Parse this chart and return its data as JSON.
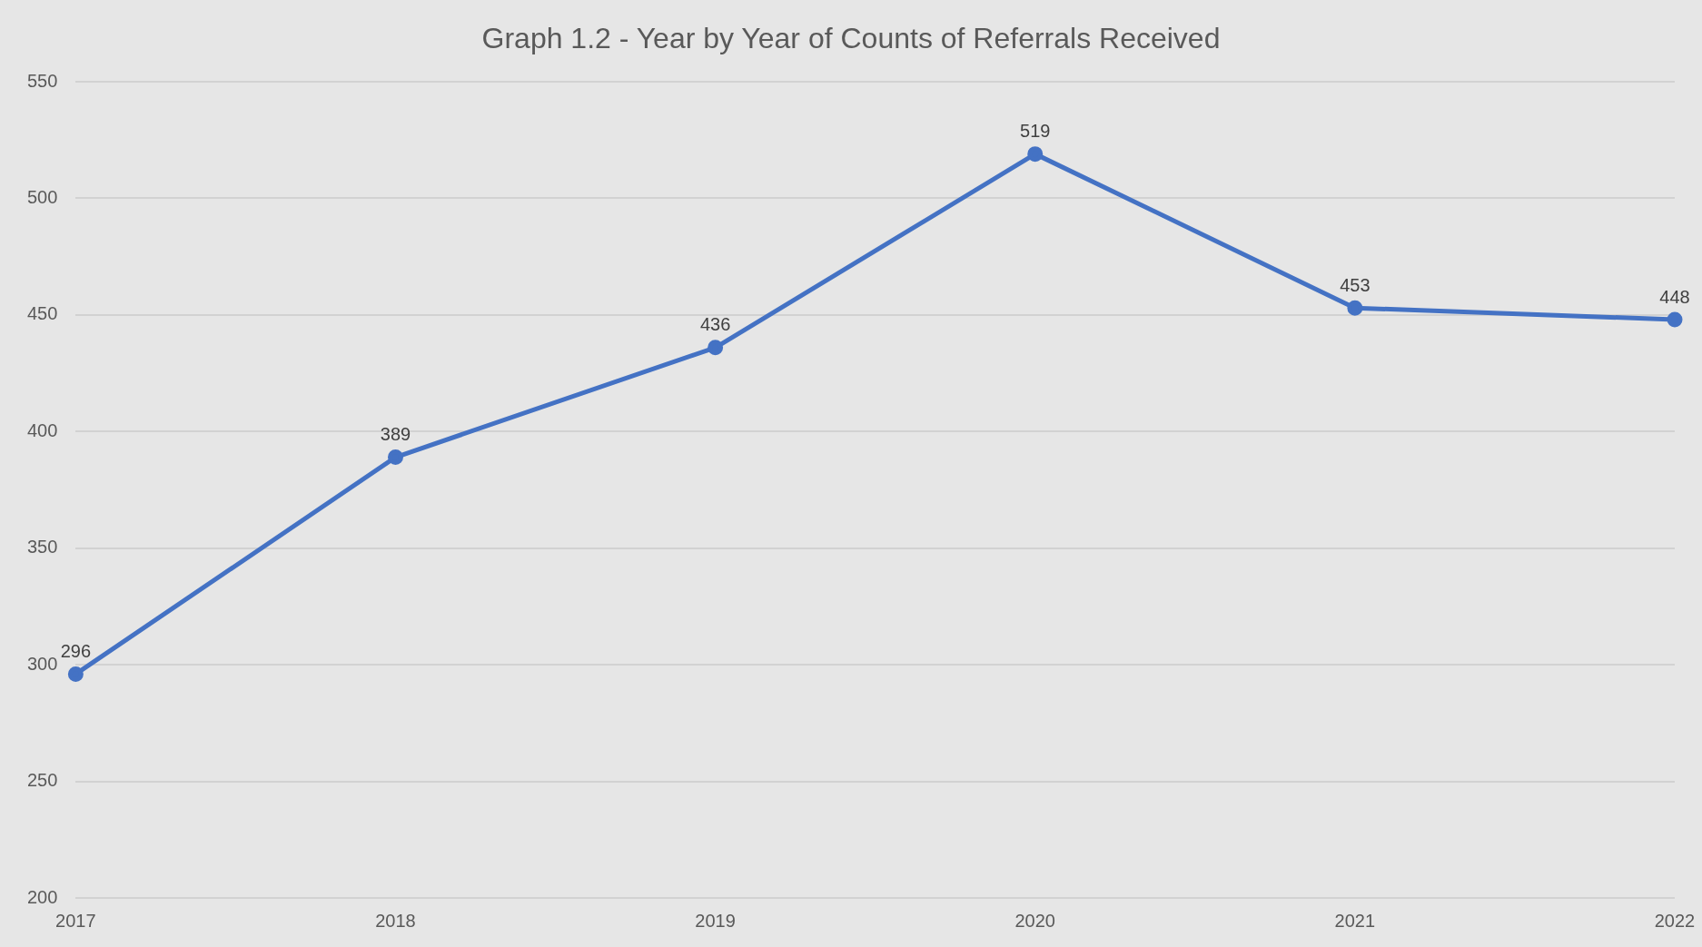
{
  "chart_data": {
    "type": "line",
    "title": "Graph 1.2 - Year by Year of Counts of Referrals Received",
    "categories": [
      "2017",
      "2018",
      "2019",
      "2020",
      "2021",
      "2022"
    ],
    "values": [
      296,
      389,
      436,
      519,
      453,
      448
    ],
    "color": "#4472c4",
    "ylim": [
      200,
      550
    ],
    "yticks": [
      200,
      250,
      300,
      350,
      400,
      450,
      500,
      550
    ],
    "grid": "y",
    "marker": "circle",
    "line_style": "solid",
    "data_labels": true,
    "legend": false
  }
}
